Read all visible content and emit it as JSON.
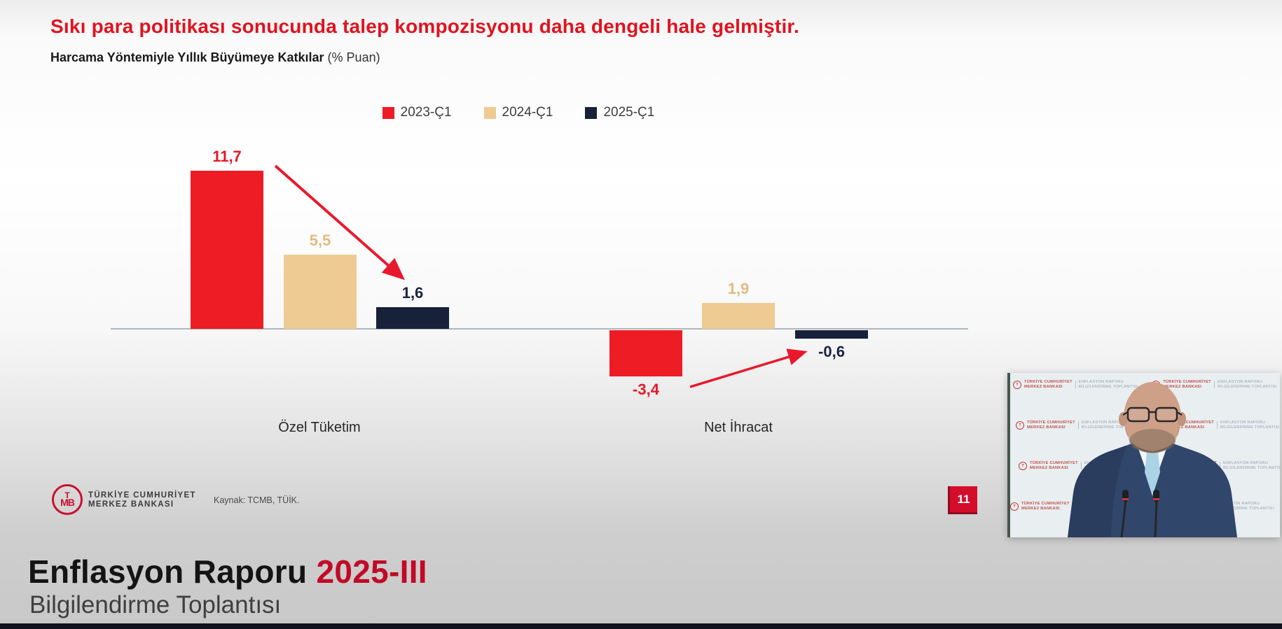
{
  "header": {
    "title": "Sıkı para politikası sonucunda talep kompozisyonu daha dengeli hale gelmiştir.",
    "subtitle": "Harcama Yöntemiyle Yıllık Büyümeye Katkılar",
    "subtitle_unit": "(% Puan)"
  },
  "chart_data": {
    "type": "bar",
    "title": "Harcama Yöntemiyle Yıllık Büyümeye Katkılar (% Puan)",
    "categories": [
      "Özel Tüketim",
      "Net İhracat"
    ],
    "series": [
      {
        "name": "2023-Ç1",
        "color": "#ee1c25",
        "label_color": "#e31a28",
        "values": [
          11.7,
          -3.4
        ],
        "value_labels": [
          "11,7",
          "-3,4"
        ]
      },
      {
        "name": "2024-Ç1",
        "color": "#eecb92",
        "label_color": "#e2bb80",
        "values": [
          5.5,
          1.9
        ],
        "value_labels": [
          "5,5",
          "1,9"
        ]
      },
      {
        "name": "2025-Ç1",
        "color": "#17213a",
        "label_color": "#1b2340",
        "values": [
          1.6,
          -0.6
        ],
        "value_labels": [
          "1,6",
          "-0,6"
        ]
      }
    ],
    "ylim": [
      -4.5,
      12.5
    ],
    "grid": false,
    "legend_position": "top-center",
    "annotations": [
      "red arrow from 11,7 down to 1,6 (Özel Tüketim)",
      "red arrow from -3,4 up to -0,6 (Net İhracat)"
    ]
  },
  "footer": {
    "logo_letter_top": "T",
    "logo_letters_bottom": "MB",
    "bank_name_line1": "TÜRKİYE CUMHURİYET",
    "bank_name_line2": "MERKEZ BANKASI",
    "source": "Kaynak: TCMB, TÜİK.",
    "page_number": "11"
  },
  "banner": {
    "title_black": "Enflasyon Raporu ",
    "title_red": "2025-III",
    "subtitle": "Bilgilendirme Toplantısı"
  },
  "video": {
    "backdrop_bank_line1": "TÜRKİYE CUMHURİYET",
    "backdrop_bank_line2": "MERKEZ BANKASI",
    "backdrop_event_line1": "ENFLASYON RAPORU",
    "backdrop_event_line2": "BİLGİLENDİRME TOPLANTISI"
  },
  "colors": {
    "title_red": "#e0131f",
    "bar_red": "#ee1c25",
    "bar_tan": "#eecb92",
    "bar_navy": "#17213a",
    "axis_gray": "#aeb7bd",
    "page_number_bg": "#d40d2b",
    "banner_red": "#c00a26"
  }
}
